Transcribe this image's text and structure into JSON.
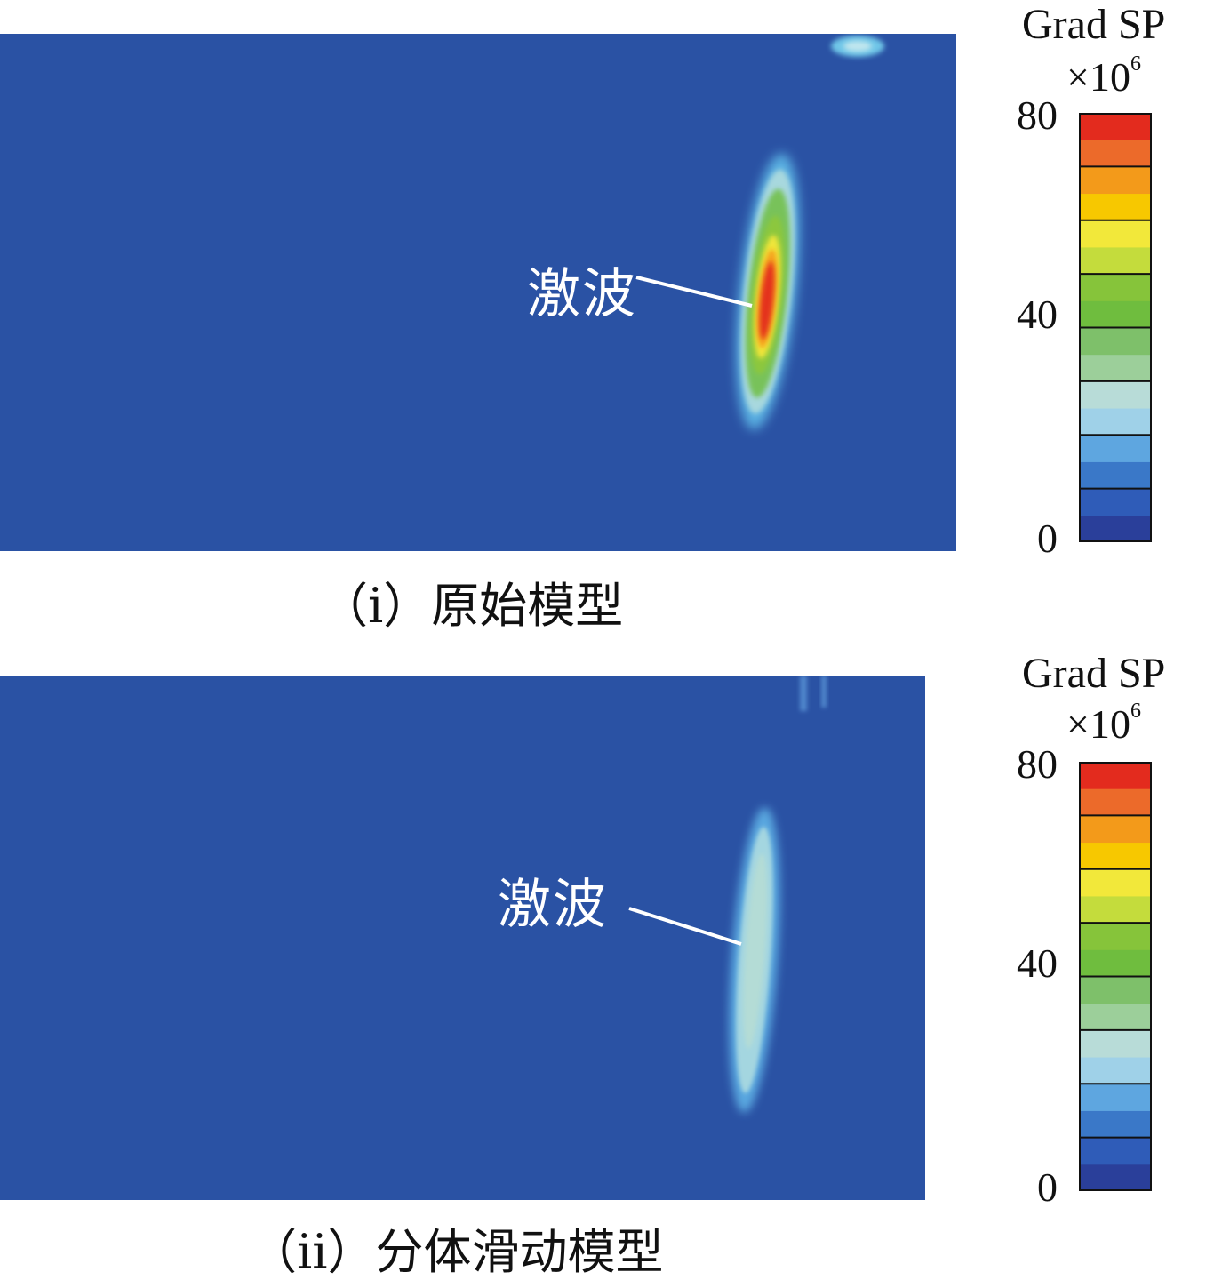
{
  "panels": [
    {
      "callout": "激波",
      "caption": "（i）原始模型",
      "legend": {
        "title": "Grad SP",
        "scale_prefix": "×10",
        "scale_exponent": "6",
        "ticks": [
          "80",
          "40",
          "0"
        ]
      }
    },
    {
      "callout": "激波",
      "caption": "（ii）分体滑动模型",
      "legend": {
        "title": "Grad SP",
        "scale_prefix": "×10",
        "scale_exponent": "6",
        "ticks": [
          "80",
          "40",
          "0"
        ]
      }
    }
  ],
  "colormap": [
    "#2a3f9a",
    "#2f5cb8",
    "#3a78c8",
    "#5ea6e0",
    "#9fd1e8",
    "#b8dcd8",
    "#9ccf9a",
    "#7ec06a",
    "#6fbd3e",
    "#86c43a",
    "#c4dc3c",
    "#f2e83a",
    "#f7c800",
    "#f39a1a",
    "#ec6a2a",
    "#e32b1e"
  ],
  "colors": {
    "background": "#2a52a4",
    "callout": "#ffffff"
  }
}
